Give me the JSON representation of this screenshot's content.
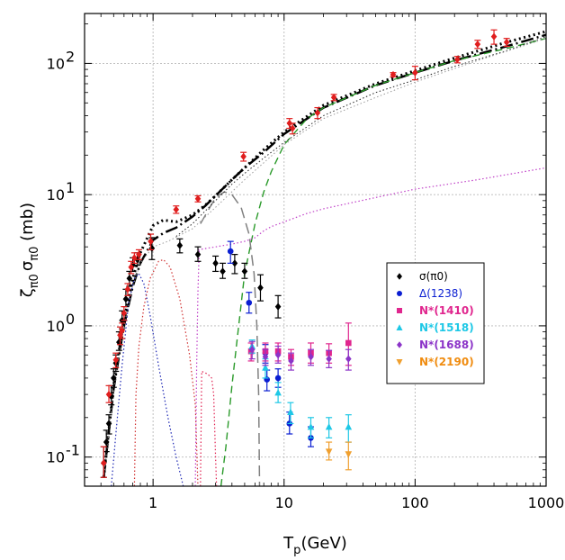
{
  "chart_data": {
    "type": "scatter",
    "xlabel": {
      "main": "T",
      "sub": "p",
      "rest": "(GeV)"
    },
    "ylabel": {
      "zeta": "ζ",
      "zsub": "π0",
      "sigma": "σ",
      "ssub": "π0",
      "rest": " (mb)"
    },
    "xscale": "log",
    "yscale": "log",
    "xlim": [
      0.3,
      1000
    ],
    "ylim": [
      0.06,
      240
    ],
    "grid": true,
    "legend_position": "right",
    "x_ticks": [
      {
        "v": 1,
        "label": "1"
      },
      {
        "v": 10,
        "label": "10"
      },
      {
        "v": 100,
        "label": "100"
      },
      {
        "v": 1000,
        "label": "1000"
      }
    ],
    "y_ticks": [
      {
        "v": 0.1,
        "base": "10",
        "exp": "-1"
      },
      {
        "v": 1,
        "base": "10",
        "exp": "0"
      },
      {
        "v": 10,
        "base": "10",
        "exp": "1"
      },
      {
        "v": 100,
        "base": "10",
        "exp": "2"
      }
    ],
    "series": [
      {
        "name": "σ(π0)",
        "marker": "diamond",
        "color": "#000000",
        "legend_color": "#000000",
        "points": [
          [
            0.42,
            0.09,
            0.07,
            0.12
          ],
          [
            0.44,
            0.13,
            0.11,
            0.16
          ],
          [
            0.46,
            0.18,
            0.15,
            0.21
          ],
          [
            0.48,
            0.29,
            0.25,
            0.35
          ],
          [
            0.5,
            0.4,
            0.34,
            0.47
          ],
          [
            0.52,
            0.52,
            0.45,
            0.6
          ],
          [
            0.55,
            0.75,
            0.65,
            0.9
          ],
          [
            0.58,
            1.1,
            0.95,
            1.3
          ],
          [
            0.62,
            1.6,
            1.4,
            1.9
          ],
          [
            0.66,
            2.3,
            2.0,
            2.6
          ],
          [
            0.7,
            2.9,
            2.6,
            3.3
          ],
          [
            0.76,
            3.2,
            2.9,
            3.6
          ],
          [
            0.98,
            3.9,
            3.2,
            4.7
          ],
          [
            1.6,
            4.1,
            3.6,
            4.6
          ],
          [
            2.2,
            3.5,
            3.1,
            4.0
          ],
          [
            3.0,
            3.0,
            2.6,
            3.4
          ],
          [
            3.4,
            2.6,
            2.3,
            3.0
          ],
          [
            4.2,
            3.0,
            2.5,
            3.5
          ],
          [
            5.0,
            2.6,
            2.3,
            3.0
          ],
          [
            6.6,
            1.95,
            1.55,
            2.45
          ],
          [
            9.0,
            1.4,
            1.15,
            1.7
          ]
        ]
      },
      {
        "name": "Δ(1238)",
        "marker": "circle",
        "color": "#0a1ed2",
        "legend_color": "#0a1ed2",
        "points": [
          [
            3.9,
            3.7,
            3.0,
            4.4
          ],
          [
            5.4,
            1.5,
            1.25,
            1.8
          ],
          [
            7.2,
            0.62,
            0.52,
            0.72
          ],
          [
            7.4,
            0.39,
            0.32,
            0.46
          ],
          [
            9.0,
            0.4,
            0.34,
            0.47
          ],
          [
            11.0,
            0.18,
            0.15,
            0.22
          ],
          [
            16.0,
            0.14,
            0.12,
            0.17
          ]
        ]
      },
      {
        "name": "N*(1410)",
        "marker": "square",
        "color": "#e0268e",
        "legend_color": "#e0268e",
        "points": [
          [
            5.6,
            0.64,
            0.54,
            0.74
          ],
          [
            7.2,
            0.64,
            0.54,
            0.74
          ],
          [
            9.0,
            0.64,
            0.54,
            0.74
          ],
          [
            11.3,
            0.58,
            0.5,
            0.66
          ],
          [
            16.0,
            0.62,
            0.52,
            0.74
          ],
          [
            22.0,
            0.62,
            0.52,
            0.73
          ],
          [
            31.0,
            0.74,
            0.5,
            1.05
          ]
        ]
      },
      {
        "name": "N*(1518)",
        "marker": "triangle",
        "color": "#1ec8e6",
        "legend_color": "#1ec8e6",
        "points": [
          [
            5.7,
            0.7,
            0.62,
            0.78
          ],
          [
            7.2,
            0.48,
            0.4,
            0.56
          ],
          [
            9.0,
            0.31,
            0.26,
            0.37
          ],
          [
            11.2,
            0.22,
            0.18,
            0.26
          ],
          [
            16.0,
            0.17,
            0.14,
            0.2
          ],
          [
            22.0,
            0.17,
            0.14,
            0.2
          ],
          [
            31.0,
            0.17,
            0.13,
            0.21
          ]
        ]
      },
      {
        "name": "N*(1688)",
        "marker": "diamond",
        "color": "#8c34c8",
        "legend_color": "#8c34c8",
        "points": [
          [
            5.7,
            0.66,
            0.56,
            0.76
          ],
          [
            7.2,
            0.58,
            0.5,
            0.66
          ],
          [
            9.0,
            0.6,
            0.52,
            0.7
          ],
          [
            11.3,
            0.54,
            0.46,
            0.62
          ],
          [
            16.0,
            0.58,
            0.5,
            0.66
          ],
          [
            22.0,
            0.56,
            0.48,
            0.65
          ],
          [
            31.0,
            0.56,
            0.46,
            0.66
          ]
        ]
      },
      {
        "name": "N*(2190)",
        "marker": "triangle-down",
        "color": "#f0a030",
        "legend_color": "#f08c10",
        "points": [
          [
            22.0,
            0.11,
            0.095,
            0.13
          ],
          [
            31.0,
            0.105,
            0.08,
            0.13
          ]
        ]
      },
      {
        "name": "",
        "marker": "diamond",
        "color": "#e01e1e",
        "legend_color": "",
        "points": [
          [
            0.42,
            0.09,
            0.07,
            0.12
          ],
          [
            0.46,
            0.3,
            0.26,
            0.35
          ],
          [
            0.52,
            0.55,
            0.48,
            0.62
          ],
          [
            0.56,
            0.85,
            0.72,
            0.98
          ],
          [
            0.58,
            0.92,
            0.8,
            1.05
          ],
          [
            0.6,
            1.25,
            1.1,
            1.4
          ],
          [
            0.64,
            1.9,
            1.7,
            2.1
          ],
          [
            0.68,
            2.8,
            2.5,
            3.1
          ],
          [
            0.72,
            3.3,
            3.0,
            3.6
          ],
          [
            0.78,
            3.5,
            3.2,
            3.8
          ],
          [
            0.96,
            4.4,
            3.8,
            5.0
          ],
          [
            1.5,
            7.7,
            7.2,
            8.2
          ],
          [
            2.2,
            9.3,
            8.8,
            9.8
          ],
          [
            4.9,
            19.5,
            18.0,
            21.0
          ],
          [
            11.0,
            35.0,
            32.0,
            38.0
          ],
          [
            11.6,
            32.0,
            29.0,
            35.0
          ],
          [
            18.0,
            42.0,
            38.0,
            46.0
          ],
          [
            24.0,
            55.0,
            52.0,
            58.0
          ],
          [
            68.0,
            82.0,
            79.0,
            85.0
          ],
          [
            100.0,
            85.0,
            75.0,
            95.0
          ],
          [
            210.0,
            107.0,
            101.0,
            113.0
          ],
          [
            300.0,
            140.0,
            130.0,
            150.0
          ],
          [
            400.0,
            160.0,
            140.0,
            180.0
          ],
          [
            500.0,
            145.0,
            135.0,
            155.0
          ]
        ]
      }
    ],
    "curves": [
      {
        "label": "total",
        "color": "#000000",
        "width": 3,
        "dash": "2,3.5",
        "points": [
          [
            0.42,
            0.07
          ],
          [
            0.5,
            0.35
          ],
          [
            0.6,
            1.1
          ],
          [
            0.7,
            2.3
          ],
          [
            0.8,
            3.6
          ],
          [
            1.0,
            5.8
          ],
          [
            1.2,
            6.4
          ],
          [
            1.5,
            6.2
          ],
          [
            2.0,
            7.0
          ],
          [
            2.5,
            8.3
          ],
          [
            3.0,
            9.8
          ],
          [
            4.0,
            13.0
          ],
          [
            5.0,
            16.0
          ],
          [
            7.0,
            22.0
          ],
          [
            10.0,
            30.0
          ],
          [
            20.0,
            48.0
          ],
          [
            50.0,
            70.0
          ],
          [
            100.0,
            88.0
          ],
          [
            200.0,
            110.0
          ],
          [
            500.0,
            145.0
          ],
          [
            1000.0,
            175.0
          ]
        ]
      },
      {
        "label": "long-dash-dot",
        "color": "#000000",
        "width": 2.5,
        "dash": "14,4,2,4",
        "points": [
          [
            0.42,
            0.07
          ],
          [
            0.5,
            0.33
          ],
          [
            0.6,
            1.0
          ],
          [
            0.7,
            2.0
          ],
          [
            0.8,
            3.0
          ],
          [
            1.0,
            4.5
          ],
          [
            1.2,
            5.1
          ],
          [
            1.5,
            5.6
          ],
          [
            2.0,
            6.8
          ],
          [
            2.5,
            8.2
          ],
          [
            3.0,
            9.8
          ],
          [
            4.0,
            13.0
          ],
          [
            5.0,
            16.0
          ],
          [
            7.0,
            21.0
          ],
          [
            10.0,
            29.0
          ],
          [
            20.0,
            46.0
          ],
          [
            50.0,
            68.0
          ],
          [
            100.0,
            85.0
          ],
          [
            200.0,
            105.0
          ],
          [
            500.0,
            135.0
          ],
          [
            1000.0,
            165.0
          ]
        ]
      },
      {
        "label": "green-dash",
        "color": "#2a9a2a",
        "width": 1.4,
        "dash": "8,5",
        "points": [
          [
            3.3,
            0.06
          ],
          [
            3.6,
            0.12
          ],
          [
            4.0,
            0.35
          ],
          [
            4.5,
            1.0
          ],
          [
            5.0,
            2.5
          ],
          [
            6.0,
            6.0
          ],
          [
            7.0,
            10.5
          ],
          [
            8.0,
            15.0
          ],
          [
            10.0,
            24.0
          ],
          [
            15.0,
            38.0
          ],
          [
            20.0,
            46.0
          ],
          [
            50.0,
            68.0
          ],
          [
            100.0,
            85.0
          ],
          [
            200.0,
            105.0
          ],
          [
            500.0,
            130.0
          ],
          [
            1000.0,
            155.0
          ]
        ]
      },
      {
        "label": "gray-long-dash",
        "color": "#808080",
        "width": 1.5,
        "dash": "12,6",
        "points": [
          [
            2.3,
            6.0
          ],
          [
            3.0,
            9.5
          ],
          [
            3.5,
            10.5
          ],
          [
            4.0,
            10.0
          ],
          [
            4.7,
            8.0
          ],
          [
            5.4,
            5.0
          ],
          [
            5.9,
            2.5
          ],
          [
            6.2,
            1.0
          ],
          [
            6.4,
            0.3
          ],
          [
            6.5,
            0.06
          ]
        ]
      },
      {
        "label": "black-thin-dot",
        "color": "#222222",
        "width": 1,
        "dash": "1.5,2.5",
        "points": [
          [
            1.5,
            4.8
          ],
          [
            2.0,
            6.0
          ],
          [
            2.5,
            7.5
          ],
          [
            3.0,
            9.0
          ],
          [
            4.0,
            12.0
          ],
          [
            5.0,
            14.5
          ],
          [
            7.0,
            19.0
          ],
          [
            10.0,
            25.0
          ],
          [
            20.0,
            40.0
          ],
          [
            50.0,
            60.0
          ],
          [
            100.0,
            75.0
          ],
          [
            200.0,
            95.0
          ],
          [
            500.0,
            125.0
          ],
          [
            1000.0,
            160.0
          ]
        ]
      },
      {
        "label": "gray-thin-dot",
        "color": "#999999",
        "width": 1,
        "dash": "1.5,2.5",
        "points": [
          [
            0.42,
            0.07
          ],
          [
            0.5,
            0.33
          ],
          [
            0.6,
            1.0
          ],
          [
            0.7,
            2.0
          ],
          [
            0.8,
            3.0
          ],
          [
            1.0,
            4.0
          ],
          [
            1.3,
            4.4
          ],
          [
            2.0,
            5.5
          ],
          [
            3.0,
            8.0
          ],
          [
            5.0,
            13.0
          ],
          [
            10.0,
            24.0
          ],
          [
            20.0,
            38.0
          ],
          [
            50.0,
            55.0
          ],
          [
            100.0,
            72.0
          ],
          [
            300.0,
            105.0
          ],
          [
            1000.0,
            155.0
          ]
        ]
      },
      {
        "label": "magenta-dot",
        "color": "#c040c8",
        "width": 1.2,
        "dash": "1.5,2.5",
        "points": [
          [
            2.2,
            3.8
          ],
          [
            3.0,
            4.0
          ],
          [
            4.0,
            4.2
          ],
          [
            5.0,
            4.4
          ],
          [
            6.0,
            4.7
          ],
          [
            7.0,
            5.3
          ],
          [
            8.0,
            5.7
          ],
          [
            10.0,
            6.2
          ],
          [
            15.0,
            7.2
          ],
          [
            20.0,
            7.8
          ],
          [
            50.0,
            9.5
          ],
          [
            100.0,
            11.0
          ],
          [
            300.0,
            13.0
          ],
          [
            1000.0,
            16.0
          ]
        ]
      },
      {
        "label": "blue-dot",
        "color": "#1e28b4",
        "width": 1.2,
        "dash": "1.5,2.5",
        "points": [
          [
            0.48,
            0.06
          ],
          [
            0.52,
            0.15
          ],
          [
            0.58,
            0.5
          ],
          [
            0.65,
            1.5
          ],
          [
            0.72,
            2.3
          ],
          [
            0.78,
            2.5
          ],
          [
            0.85,
            2.1
          ],
          [
            0.95,
            1.2
          ],
          [
            1.1,
            0.5
          ],
          [
            1.3,
            0.2
          ],
          [
            1.5,
            0.1
          ],
          [
            1.7,
            0.06
          ]
        ]
      },
      {
        "label": "red-dot",
        "color": "#d03030",
        "width": 1.2,
        "dash": "1.5,2.5",
        "points": [
          [
            0.72,
            0.06
          ],
          [
            0.74,
            0.3
          ],
          [
            0.78,
            0.7
          ],
          [
            0.85,
            1.4
          ],
          [
            0.95,
            2.3
          ],
          [
            1.1,
            3.1
          ],
          [
            1.2,
            3.2
          ],
          [
            1.35,
            2.8
          ],
          [
            1.6,
            1.6
          ],
          [
            1.9,
            0.6
          ],
          [
            2.1,
            0.25
          ],
          [
            2.2,
            0.06
          ]
        ]
      },
      {
        "label": "crimson-dot",
        "color": "#e02050",
        "width": 1.2,
        "dash": "1.5,2.5",
        "points": [
          [
            2.3,
            0.06
          ],
          [
            2.35,
            0.45
          ],
          [
            2.6,
            0.43
          ],
          [
            2.8,
            0.4
          ],
          [
            2.9,
            0.3
          ],
          [
            3.0,
            0.1
          ],
          [
            3.05,
            0.06
          ]
        ]
      },
      {
        "label": "magenta-ramp",
        "color": "#c040c8",
        "width": 1.2,
        "dash": "1.5,2.5",
        "points": [
          [
            2.1,
            0.06
          ],
          [
            2.15,
            0.5
          ],
          [
            2.2,
            1.8
          ],
          [
            2.25,
            3.8
          ]
        ]
      }
    ]
  }
}
